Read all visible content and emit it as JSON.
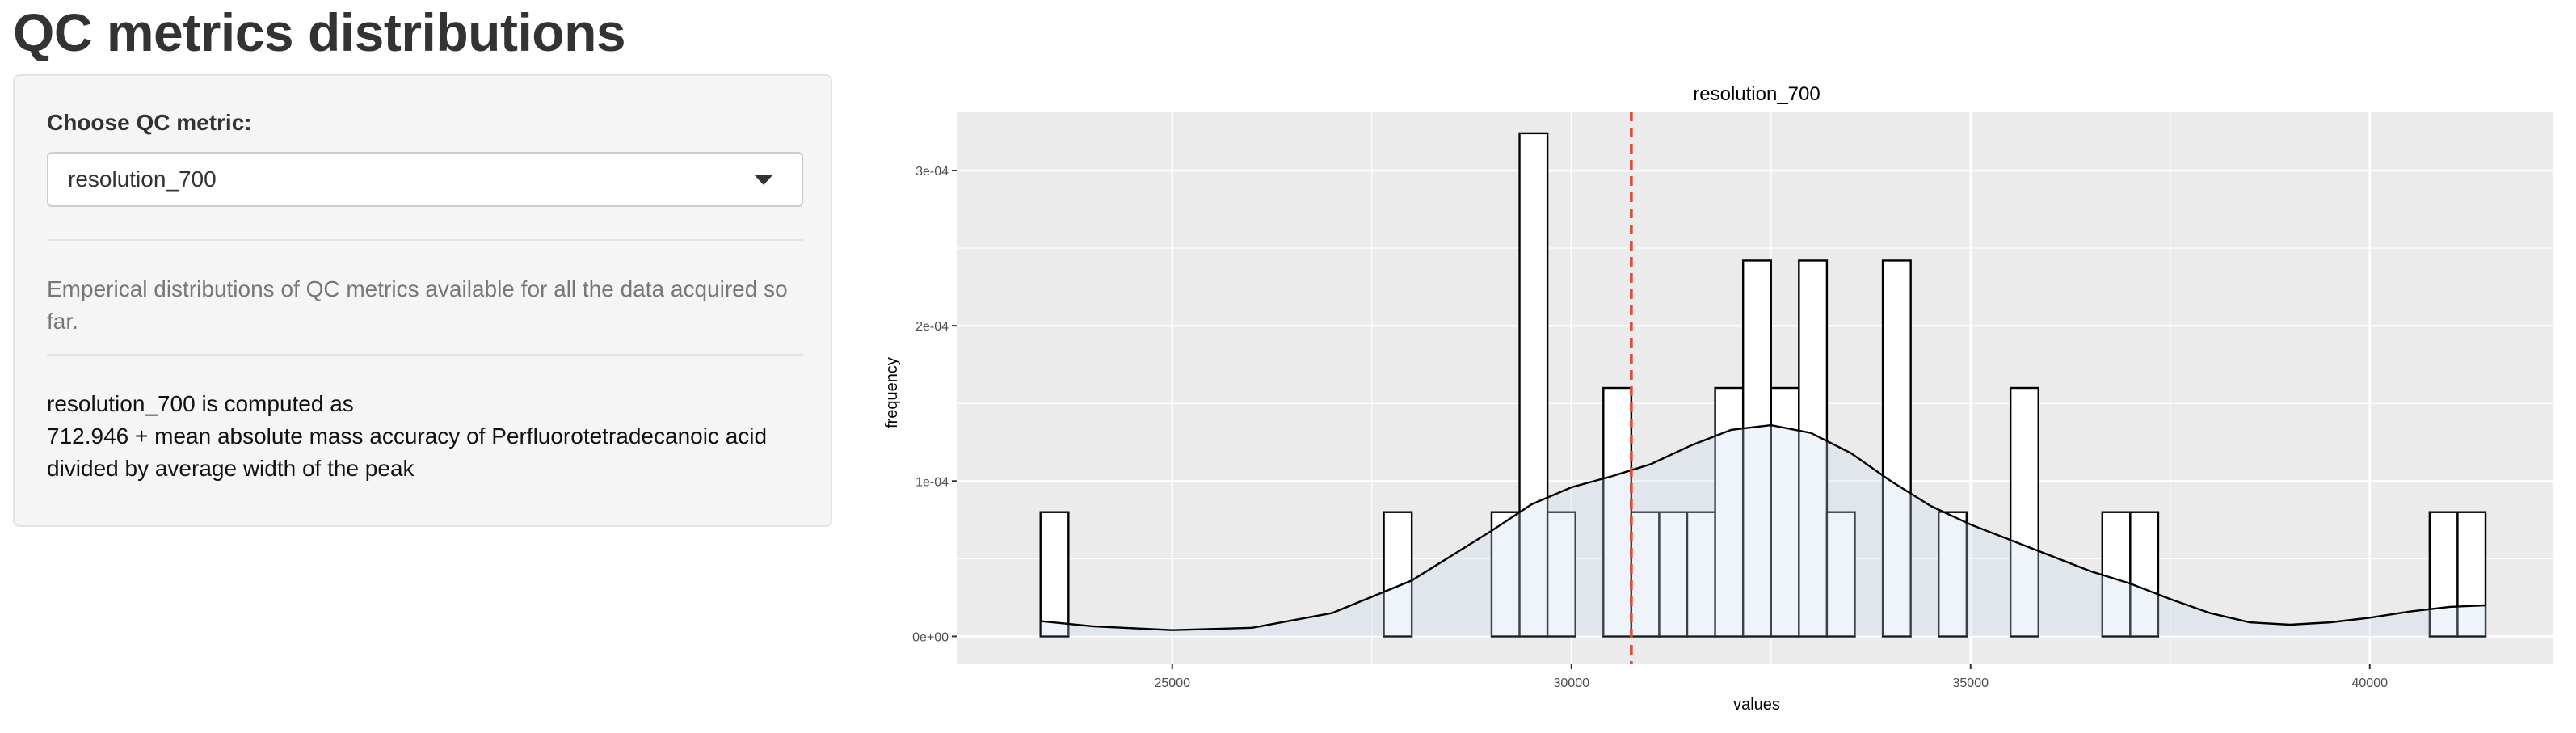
{
  "page": {
    "title": "QC metrics distributions"
  },
  "sidebar": {
    "label": "Choose QC metric:",
    "selected_metric": "resolution_700",
    "description": "Emperical distributions of QC metrics available for all the data acquired so far.",
    "computed_as": {
      "line1": "resolution_700 is computed as",
      "line2": "712.946 + mean absolute mass accuracy of Perfluorotetradecanoic acid",
      "line3": "divided by average width of the peak"
    }
  },
  "chart_data": {
    "type": "bar",
    "title": "resolution_700",
    "xlabel": "values",
    "ylabel": "frequency",
    "xlim": [
      22300,
      42300
    ],
    "ylim": [
      -1.8e-05,
      0.000338
    ],
    "x_ticks": [
      25000,
      30000,
      35000,
      40000
    ],
    "x_tick_labels": [
      "25000",
      "30000",
      "35000",
      "40000"
    ],
    "y_ticks": [
      0,
      0.0001,
      0.0002,
      0.0003
    ],
    "y_tick_labels": [
      "0e+00",
      "1e-04",
      "2e-04",
      "3e-04"
    ],
    "grid": true,
    "bins": [
      {
        "x0": 23350,
        "x1": 23700,
        "value": 8e-05
      },
      {
        "x0": 27650,
        "x1": 28000,
        "value": 8e-05
      },
      {
        "x0": 29000,
        "x1": 29350,
        "value": 8e-05
      },
      {
        "x0": 29350,
        "x1": 29700,
        "value": 0.000324
      },
      {
        "x0": 29700,
        "x1": 30050,
        "value": 8e-05
      },
      {
        "x0": 30400,
        "x1": 30750,
        "value": 0.00016
      },
      {
        "x0": 30750,
        "x1": 31100,
        "value": 8e-05
      },
      {
        "x0": 31100,
        "x1": 31450,
        "value": 8e-05
      },
      {
        "x0": 31450,
        "x1": 31800,
        "value": 8e-05
      },
      {
        "x0": 31800,
        "x1": 32150,
        "value": 0.00016
      },
      {
        "x0": 32150,
        "x1": 32500,
        "value": 0.000242
      },
      {
        "x0": 32500,
        "x1": 32850,
        "value": 0.00016
      },
      {
        "x0": 32850,
        "x1": 33200,
        "value": 0.000242
      },
      {
        "x0": 33200,
        "x1": 33550,
        "value": 8e-05
      },
      {
        "x0": 33900,
        "x1": 34250,
        "value": 0.000242
      },
      {
        "x0": 34600,
        "x1": 34950,
        "value": 8e-05
      },
      {
        "x0": 35500,
        "x1": 35850,
        "value": 0.00016
      },
      {
        "x0": 36650,
        "x1": 37000,
        "value": 8e-05
      },
      {
        "x0": 37000,
        "x1": 37350,
        "value": 8e-05
      },
      {
        "x0": 40750,
        "x1": 41100,
        "value": 8e-05
      },
      {
        "x0": 41100,
        "x1": 41450,
        "value": 8e-05
      }
    ],
    "density": {
      "x": [
        23350,
        24000,
        25000,
        26000,
        27000,
        28000,
        29000,
        29500,
        30000,
        30500,
        31000,
        31500,
        32000,
        32500,
        33000,
        33500,
        34000,
        34500,
        35000,
        35500,
        36000,
        36500,
        37000,
        37500,
        38000,
        38500,
        39000,
        39500,
        40000,
        40500,
        41000,
        41450
      ],
      "y": [
        9.8e-06,
        6.5e-06,
        4e-06,
        5.5e-06,
        1.5e-05,
        3.6e-05,
        6.8e-05,
        8.5e-05,
        9.6e-05,
        0.000103,
        0.000111,
        0.000123,
        0.000133,
        0.000136,
        0.000131,
        0.000118,
        0.0001,
        8.4e-05,
        7.2e-05,
        6.2e-05,
        5.2e-05,
        4.2e-05,
        3.4e-05,
        2.4e-05,
        1.5e-05,
        9e-06,
        7.5e-06,
        9e-06,
        1.2e-05,
        1.6e-05,
        1.9e-05,
        2e-05
      ],
      "fill": "#c6dbef",
      "fill_opacity": 0.3
    },
    "vline": {
      "x": 30750,
      "color": "#e34a33",
      "style": "dashed"
    },
    "colors": {
      "panel_bg": "#ebebeb",
      "grid": "#ffffff",
      "bar_fill": "#ffffff",
      "bar_stroke": "#000000"
    }
  }
}
